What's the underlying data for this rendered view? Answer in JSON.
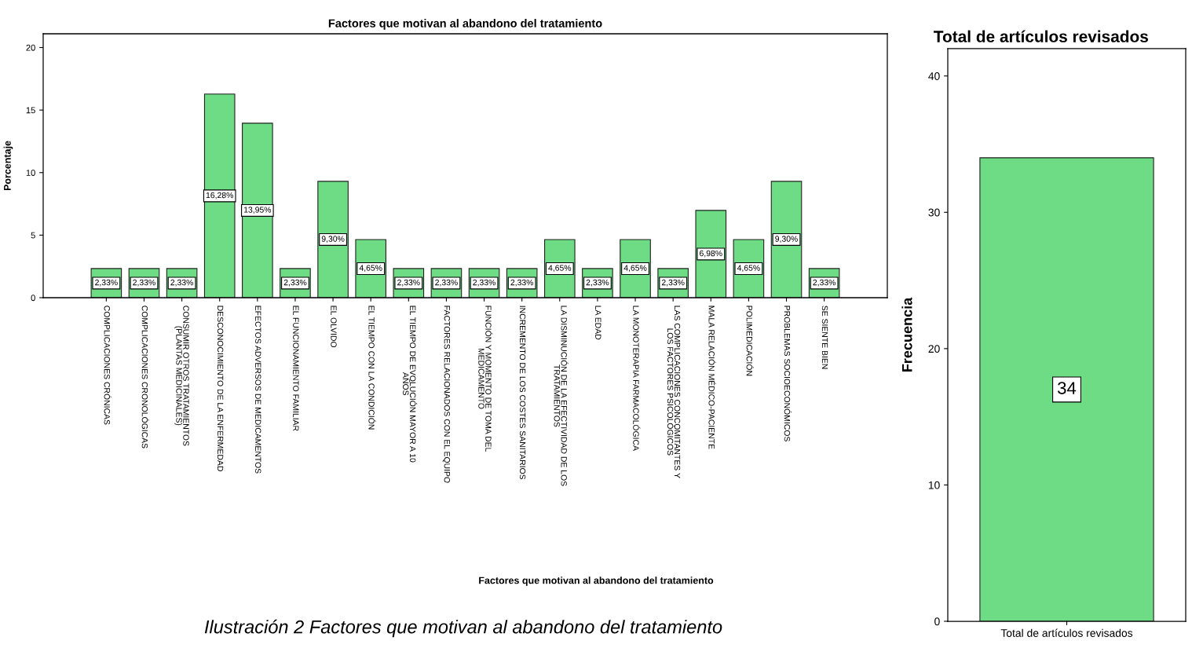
{
  "chart_data": [
    {
      "type": "bar",
      "title": "Factores que motivan al abandono del tratamiento",
      "xlabel": "Factores que motivan al abandono del tratamiento",
      "ylabel": "Porcentaje",
      "categories": [
        "COMPLICACIONES CRÓNICAS",
        "COMPLICACIONES CRONOLÓGICAS",
        "CONSUMIR OTROS TRATAMIENTOS\n(PLANTAS MEDICINALES)",
        "DESCONOCIMIENTO DE LA ENFERMEDAD",
        "EFECTOS ADVERSOS DE MEDICAMENTOS",
        "EL FUNCIONAMIENTO FAMILIAR",
        "EL OLVIDO",
        "EL TIEMPO CON LA CONDICIÓN",
        "EL TIEMPO DE EVOLUCIÓN MAYOR A 10\nAÑOS",
        "FACTORES RELACIONADOS CON EL EQUIPO",
        "FUNCIÓN Y MOMENTO DE TOMA DEL\nMEDICAMENTO",
        "INCREMENTO DE LOS COSTES SANITARIOS",
        "LA DISMINUCIÓN DE LA EFECTIVIDAD DE LOS\nTRATAMIENTOS",
        "LA EDAD",
        "LA MONOTERAPIA FARMACOLÓGICA",
        "LAS COMPLICACIONES CONCOMITANTES Y\nLOS FACTORES PSICOLÓGICOS",
        "MALA RELACIÓN MÉDICO-PACIENTE",
        "POLIMEDICACIÓN",
        "PROBLEMAS SOCIOECONÓMICOS",
        "SE SIENTE BIEN"
      ],
      "values": [
        2.33,
        2.33,
        2.33,
        16.28,
        13.95,
        2.33,
        9.3,
        4.65,
        2.33,
        2.33,
        2.33,
        2.33,
        4.65,
        2.33,
        4.65,
        2.33,
        6.98,
        4.65,
        9.3,
        2.33
      ],
      "value_labels": [
        "2,33%",
        "2,33%",
        "2,33%",
        "16,28%",
        "13,95%",
        "2,33%",
        "9,30%",
        "4,65%",
        "2,33%",
        "2,33%",
        "2,33%",
        "2,33%",
        "4,65%",
        "2,33%",
        "4,65%",
        "2,33%",
        "6,98%",
        "4,65%",
        "9,30%",
        "2,33%"
      ],
      "color": "#6ddc84",
      "ylim": [
        0,
        21.1
      ],
      "yticks": [
        0,
        5,
        10,
        15,
        20
      ],
      "grid": false,
      "annotations": [
        "Ilustración 2 Factores que motivan al abandono del tratamiento"
      ]
    },
    {
      "type": "bar",
      "title": "Total de artículos revisados",
      "ylabel": "Frecuencia",
      "categories": [
        "Total de artículos revisados"
      ],
      "values": [
        34
      ],
      "data_labels": true,
      "color": "#6ddc84",
      "ylim": [
        0,
        42
      ],
      "yticks": [
        0,
        10,
        20,
        30,
        40
      ],
      "grid": false
    }
  ]
}
